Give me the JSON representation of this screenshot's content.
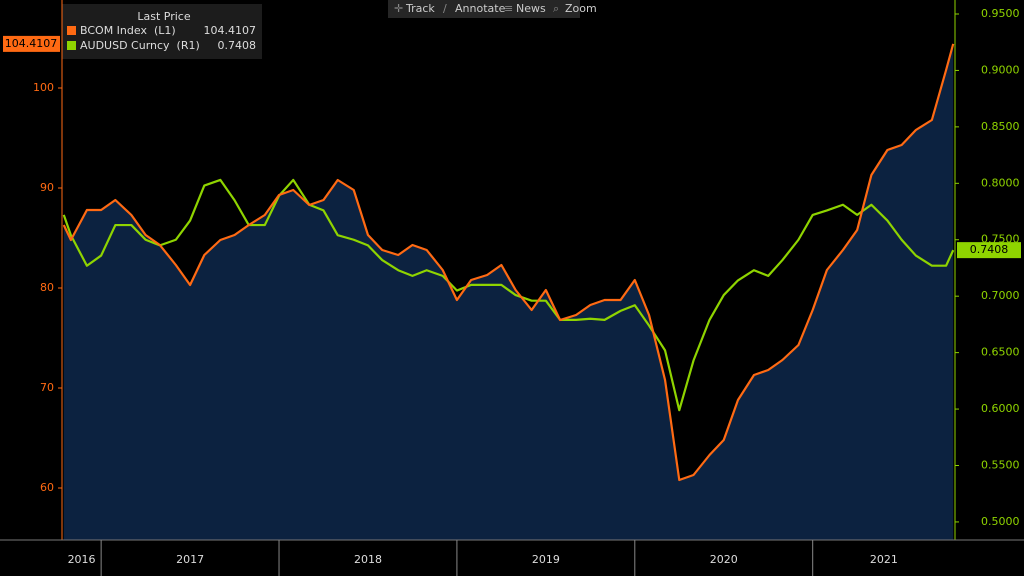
{
  "chart_data": {
    "type": "line",
    "toolbar": [
      "Track",
      "Annotate",
      "News",
      "Zoom"
    ],
    "legend_title": "Last Price",
    "x_periods": [
      "2016",
      "2017",
      "2018",
      "2019",
      "2020",
      "2021"
    ],
    "xlim": [
      2016.78,
      2021.8
    ],
    "xticks": [
      2017,
      2018,
      2019,
      2020,
      2021
    ],
    "x": [
      2016.79,
      2016.83,
      2016.92,
      2017.0,
      2017.08,
      2017.17,
      2017.25,
      2017.33,
      2017.42,
      2017.5,
      2017.58,
      2017.67,
      2017.75,
      2017.83,
      2017.92,
      2018.0,
      2018.08,
      2018.17,
      2018.25,
      2018.33,
      2018.42,
      2018.5,
      2018.58,
      2018.67,
      2018.75,
      2018.83,
      2018.92,
      2019.0,
      2019.08,
      2019.17,
      2019.25,
      2019.33,
      2019.42,
      2019.5,
      2019.58,
      2019.67,
      2019.75,
      2019.83,
      2019.92,
      2020.0,
      2020.08,
      2020.17,
      2020.25,
      2020.33,
      2020.42,
      2020.5,
      2020.58,
      2020.67,
      2020.75,
      2020.83,
      2020.92,
      2021.0,
      2021.08,
      2021.17,
      2021.25,
      2021.33,
      2021.42,
      2021.5,
      2021.58,
      2021.67,
      2021.75,
      2021.79
    ],
    "ylim": [
      54.8,
      108.8
    ],
    "yticks": [
      60,
      70,
      80,
      90,
      100
    ],
    "y2lim": [
      0.484,
      0.9624
    ],
    "y2ticks": [
      {
        "value": 0.5,
        "label": "0.5000"
      },
      {
        "value": 0.55,
        "label": "0.5500"
      },
      {
        "value": 0.6,
        "label": "0.6000"
      },
      {
        "value": 0.65,
        "label": "0.6500"
      },
      {
        "value": 0.7,
        "label": "0.7000"
      },
      {
        "value": 0.75,
        "label": "0.7500"
      },
      {
        "value": 0.8,
        "label": "0.8000"
      },
      {
        "value": 0.85,
        "label": "0.8500"
      },
      {
        "value": 0.9,
        "label": "0.9000"
      },
      {
        "value": 0.95,
        "label": "0.9500"
      }
    ],
    "area_color": "#0c2240",
    "series": [
      {
        "name": "BCOM Index  (L1)",
        "color": "#ff6a13",
        "axis": "y",
        "area": true,
        "last_label": "104.4107",
        "values": [
          86.3,
          84.8,
          87.8,
          87.8,
          88.8,
          87.3,
          85.3,
          84.3,
          82.3,
          80.3,
          83.3,
          84.8,
          85.3,
          86.3,
          87.3,
          89.3,
          89.8,
          88.3,
          88.8,
          90.8,
          89.8,
          85.3,
          83.8,
          83.3,
          84.3,
          83.8,
          81.8,
          78.8,
          80.8,
          81.3,
          82.3,
          79.8,
          77.8,
          79.8,
          76.8,
          77.3,
          78.3,
          78.8,
          78.8,
          80.8,
          77.3,
          70.8,
          60.8,
          61.3,
          63.3,
          64.8,
          68.8,
          71.3,
          71.8,
          72.8,
          74.3,
          77.8,
          81.8,
          83.8,
          85.8,
          91.3,
          93.8,
          94.3,
          95.8,
          96.8,
          101.8,
          104.4107
        ]
      },
      {
        "name": "AUDUSD Curncy  (R1)",
        "color": "#8fd400",
        "axis": "y2",
        "area": false,
        "last_label": "0.7408",
        "values": [
          0.772,
          0.754,
          0.727,
          0.736,
          0.763,
          0.763,
          0.75,
          0.745,
          0.75,
          0.767,
          0.798,
          0.803,
          0.785,
          0.763,
          0.763,
          0.789,
          0.803,
          0.781,
          0.776,
          0.754,
          0.75,
          0.745,
          0.732,
          0.723,
          0.718,
          0.723,
          0.718,
          0.705,
          0.71,
          0.71,
          0.71,
          0.701,
          0.696,
          0.696,
          0.679,
          0.679,
          0.68,
          0.679,
          0.687,
          0.692,
          0.674,
          0.652,
          0.599,
          0.643,
          0.679,
          0.701,
          0.714,
          0.723,
          0.718,
          0.732,
          0.75,
          0.772,
          0.776,
          0.781,
          0.772,
          0.781,
          0.767,
          0.75,
          0.736,
          0.727,
          0.727,
          0.7408
        ]
      }
    ]
  }
}
